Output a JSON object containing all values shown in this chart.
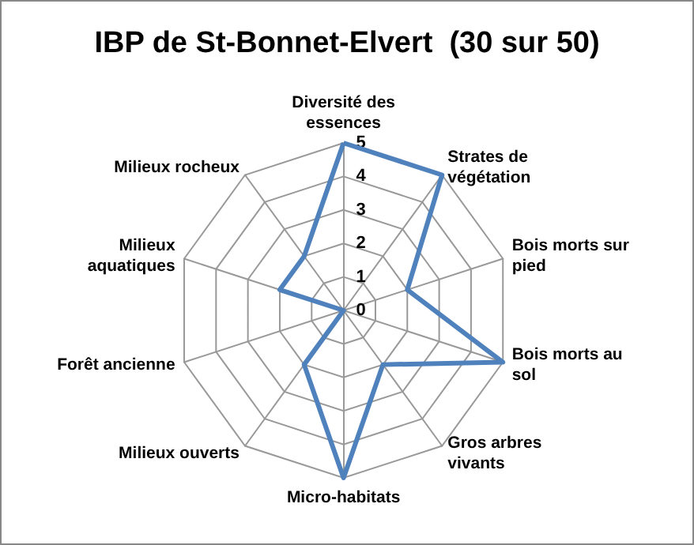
{
  "chart_data": {
    "type": "radar",
    "title": "IBP de St-Bonnet-Elvert  (30 sur 50)",
    "categories": [
      "Diversité des essences",
      "Strates de végétation",
      "Bois morts sur pied",
      "Bois morts au sol",
      "Gros arbres vivants",
      "Micro-habitats",
      "Milieux ouverts",
      "Forêt ancienne",
      "Milieux aquatiques",
      "Milieux rocheux"
    ],
    "series": [
      {
        "color": "#4f81bd",
        "values": [
          5,
          5,
          2,
          5,
          2,
          5,
          2,
          0,
          2,
          2
        ]
      }
    ],
    "ylim": [
      0,
      5
    ],
    "yticks": [
      0,
      1,
      2,
      3,
      4,
      5
    ],
    "grid": true,
    "marker": "none"
  }
}
